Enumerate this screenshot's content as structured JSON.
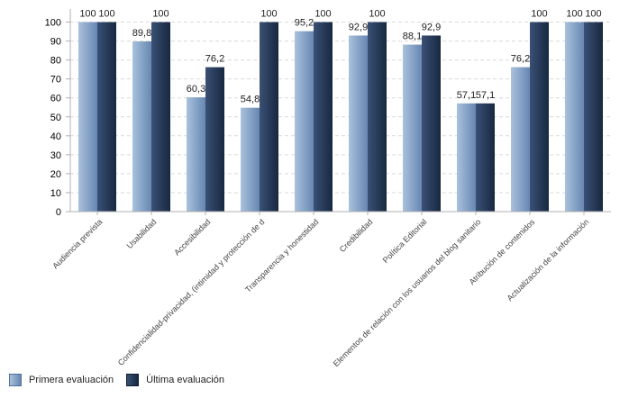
{
  "chart_data": {
    "type": "bar",
    "categories": [
      "Audiencia prevista",
      "Usabilidad",
      "Accesibilidad",
      "Confidencialidad-privacidad, (intimidad y protección de d",
      "Transparencia y honestidad",
      "Credibilidad",
      "Política Editorial",
      "Elementos de relación con los usuarios del blog sanitario",
      "Atribución de contenidos",
      "Actualización de la información"
    ],
    "series": [
      {
        "name": "Primera evaluación",
        "values": [
          100,
          89.8,
          60.3,
          54.8,
          95.2,
          92.9,
          88.1,
          57.1,
          76.2,
          100
        ],
        "labels": [
          "100",
          "89,8",
          "60,3",
          "54,8",
          "95,2",
          "92,9",
          "88,1",
          "57,1",
          "76,2",
          "100"
        ],
        "color": "#7b9cc4",
        "color_light": "#a9c1dc"
      },
      {
        "name": "Última evaluación",
        "values": [
          100,
          100,
          76.2,
          100,
          100,
          100,
          92.9,
          57.1,
          100,
          100
        ],
        "labels": [
          "100",
          "100",
          "76,2",
          "100",
          "100",
          "100",
          "92,9",
          "57,1",
          "100",
          "100"
        ],
        "color": "#1f3350",
        "color_light": "#33496b"
      }
    ],
    "yticks": [
      "0",
      "10",
      "20",
      "30",
      "40",
      "50",
      "60",
      "70",
      "80",
      "90",
      "100"
    ],
    "ylim": [
      0,
      105
    ],
    "grid": true,
    "legend_position": "bottom-left"
  }
}
